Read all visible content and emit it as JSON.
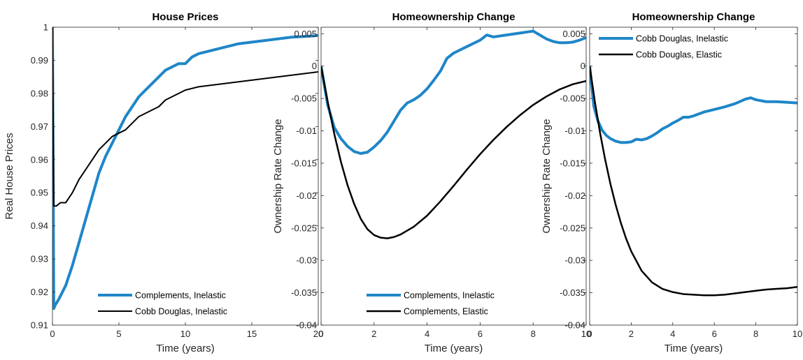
{
  "chart_data": [
    {
      "type": "line",
      "title": "House Prices",
      "xlabel": "Time (years)",
      "ylabel": "Real House Prices",
      "xlim": [
        0,
        20
      ],
      "ylim": [
        0.91,
        1.0
      ],
      "xticks": [
        "0",
        "5",
        "10",
        "15",
        "20"
      ],
      "yticks": [
        "0.91",
        "0.92",
        "0.93",
        "0.94",
        "0.95",
        "0.96",
        "0.97",
        "0.98",
        "0.99",
        "1"
      ],
      "legend_position": "bottom-right",
      "series": [
        {
          "name": "Complements, Inelastic",
          "color": "#1f86c8",
          "width": 4,
          "x": [
            0,
            0.1,
            0.2,
            0.5,
            1,
            1.5,
            2,
            2.5,
            3,
            3.5,
            4,
            4.5,
            5,
            5.5,
            6,
            6.5,
            7,
            7.5,
            8,
            8.5,
            9,
            9.5,
            10,
            10.5,
            11,
            12,
            13,
            14,
            15,
            16,
            17,
            18,
            19,
            20
          ],
          "y": [
            1.0,
            0.915,
            0.916,
            0.918,
            0.922,
            0.928,
            0.935,
            0.942,
            0.949,
            0.956,
            0.961,
            0.965,
            0.969,
            0.973,
            0.976,
            0.979,
            0.981,
            0.983,
            0.985,
            0.987,
            0.988,
            0.989,
            0.989,
            0.991,
            0.992,
            0.993,
            0.994,
            0.995,
            0.9955,
            0.996,
            0.9965,
            0.997,
            0.9972,
            0.9975
          ]
        },
        {
          "name": "Cobb Douglas, Inelastic",
          "color": "#000000",
          "width": 2,
          "x": [
            0,
            0.1,
            0.3,
            0.6,
            1,
            1.5,
            2,
            2.5,
            3,
            3.5,
            4,
            4.5,
            5,
            5.5,
            6,
            6.5,
            7,
            7.5,
            8,
            8.5,
            9,
            10,
            11,
            12,
            13,
            14,
            15,
            16,
            17,
            18,
            19,
            20
          ],
          "y": [
            1.0,
            0.946,
            0.946,
            0.947,
            0.947,
            0.95,
            0.954,
            0.957,
            0.96,
            0.963,
            0.965,
            0.967,
            0.968,
            0.969,
            0.971,
            0.973,
            0.974,
            0.975,
            0.976,
            0.978,
            0.979,
            0.981,
            0.982,
            0.9825,
            0.983,
            0.9835,
            0.984,
            0.9845,
            0.985,
            0.9855,
            0.986,
            0.9865
          ]
        }
      ]
    },
    {
      "type": "line",
      "title": "Homeownership Change",
      "xlabel": "Time (years)",
      "ylabel": "Ownership Rate Change",
      "xlim": [
        0,
        10
      ],
      "ylim": [
        -0.04,
        0.006
      ],
      "xticks": [
        "0",
        "2",
        "4",
        "6",
        "8",
        "10"
      ],
      "yticks": [
        "-0.04",
        "-0.035",
        "-0.03",
        "-0.025",
        "-0.02",
        "-0.015",
        "-0.01",
        "-0.005",
        "0",
        "0.005"
      ],
      "legend_position": "bottom-right",
      "series": [
        {
          "name": "Complements, Inelastic",
          "color": "#1f86c8",
          "width": 4,
          "x": [
            0,
            0.25,
            0.5,
            0.75,
            1,
            1.25,
            1.5,
            1.75,
            2,
            2.25,
            2.5,
            2.75,
            3,
            3.25,
            3.5,
            3.75,
            4,
            4.25,
            4.5,
            4.75,
            5,
            5.5,
            6,
            6.25,
            6.5,
            7,
            7.5,
            8,
            8.25,
            8.5,
            8.75,
            9,
            9.25,
            9.5,
            9.75,
            10
          ],
          "y": [
            0,
            -0.006,
            -0.0095,
            -0.0112,
            -0.0124,
            -0.0132,
            -0.0135,
            -0.0133,
            -0.0125,
            -0.0115,
            -0.0102,
            -0.0085,
            -0.0068,
            -0.0057,
            -0.0052,
            -0.0045,
            -0.0035,
            -0.0022,
            -0.0008,
            0.0012,
            0.002,
            0.003,
            0.004,
            0.0048,
            0.0045,
            0.0048,
            0.0051,
            0.0054,
            0.0048,
            0.0042,
            0.0038,
            0.0036,
            0.0036,
            0.0037,
            0.004,
            0.0044
          ]
        },
        {
          "name": "Complements, Elastic",
          "color": "#000000",
          "width": 2.5,
          "x": [
            0,
            0.25,
            0.5,
            0.75,
            1,
            1.25,
            1.5,
            1.75,
            2,
            2.25,
            2.5,
            2.75,
            3,
            3.5,
            4,
            4.5,
            5,
            5.5,
            6,
            6.5,
            7,
            7.5,
            8,
            8.5,
            9,
            9.5,
            10
          ],
          "y": [
            0,
            -0.0055,
            -0.0105,
            -0.0148,
            -0.0184,
            -0.0213,
            -0.0236,
            -0.0252,
            -0.0261,
            -0.0265,
            -0.0266,
            -0.0264,
            -0.026,
            -0.0248,
            -0.0231,
            -0.0209,
            -0.0185,
            -0.016,
            -0.0136,
            -0.0114,
            -0.0094,
            -0.0076,
            -0.006,
            -0.0047,
            -0.0036,
            -0.0028,
            -0.0023
          ]
        }
      ]
    },
    {
      "type": "line",
      "title": "Homeownership Change",
      "xlabel": "Time (years)",
      "ylabel": "Ownership Rate Change",
      "xlim": [
        0,
        10
      ],
      "ylim": [
        -0.04,
        0.006
      ],
      "xticks": [
        "0",
        "2",
        "4",
        "6",
        "8",
        "10"
      ],
      "yticks": [
        "-0.04",
        "-0.035",
        "-0.03",
        "-0.025",
        "-0.02",
        "-0.015",
        "-0.01",
        "-0.005",
        "0",
        "0.005"
      ],
      "legend_position": "top-right",
      "series": [
        {
          "name": "Cobb Douglas, Inelastic",
          "color": "#1f86c8",
          "width": 4,
          "x": [
            0,
            0.2,
            0.4,
            0.6,
            0.8,
            1,
            1.25,
            1.5,
            1.75,
            2,
            2.25,
            2.5,
            2.75,
            3,
            3.25,
            3.5,
            3.75,
            4,
            4.25,
            4.5,
            4.75,
            5,
            5.5,
            6,
            6.5,
            7,
            7.5,
            7.75,
            8,
            8.5,
            9,
            9.5,
            10
          ],
          "y": [
            0,
            -0.0062,
            -0.0085,
            -0.0099,
            -0.0107,
            -0.0112,
            -0.0116,
            -0.0118,
            -0.0118,
            -0.0117,
            -0.0113,
            -0.0114,
            -0.0112,
            -0.0108,
            -0.0103,
            -0.0097,
            -0.0093,
            -0.0088,
            -0.0084,
            -0.0079,
            -0.0079,
            -0.0077,
            -0.0071,
            -0.0067,
            -0.0063,
            -0.0058,
            -0.0051,
            -0.0049,
            -0.0052,
            -0.0055,
            -0.0055,
            -0.0056,
            -0.0057
          ]
        },
        {
          "name": "Cobb Douglas, Elastic",
          "color": "#000000",
          "width": 2.5,
          "x": [
            0,
            0.25,
            0.5,
            0.75,
            1,
            1.25,
            1.5,
            1.75,
            2,
            2.5,
            3,
            3.5,
            4,
            4.5,
            5,
            5.5,
            6,
            6.5,
            7,
            7.5,
            8,
            8.5,
            9,
            9.5,
            10
          ],
          "y": [
            0,
            -0.0055,
            -0.0103,
            -0.0145,
            -0.0182,
            -0.0214,
            -0.0242,
            -0.0266,
            -0.0286,
            -0.0316,
            -0.0334,
            -0.0344,
            -0.0349,
            -0.0352,
            -0.0353,
            -0.0354,
            -0.0354,
            -0.0353,
            -0.0351,
            -0.0349,
            -0.0347,
            -0.0345,
            -0.0344,
            -0.0343,
            -0.0341
          ]
        }
      ]
    }
  ]
}
